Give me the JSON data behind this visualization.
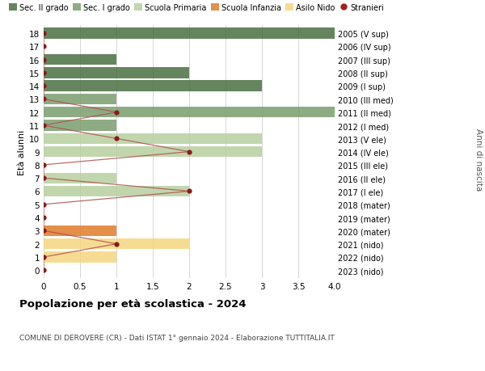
{
  "ages": [
    18,
    17,
    16,
    15,
    14,
    13,
    12,
    11,
    10,
    9,
    8,
    7,
    6,
    5,
    4,
    3,
    2,
    1,
    0
  ],
  "years_labels": [
    "2005 (V sup)",
    "2006 (IV sup)",
    "2007 (III sup)",
    "2008 (II sup)",
    "2009 (I sup)",
    "2010 (III med)",
    "2011 (II med)",
    "2012 (I med)",
    "2013 (V ele)",
    "2014 (IV ele)",
    "2015 (III ele)",
    "2016 (II ele)",
    "2017 (I ele)",
    "2018 (mater)",
    "2019 (mater)",
    "2020 (mater)",
    "2021 (nido)",
    "2022 (nido)",
    "2023 (nido)"
  ],
  "bar_values": [
    4.0,
    0,
    1.0,
    2.0,
    3.0,
    1.0,
    4.0,
    1.0,
    3.0,
    3.0,
    0,
    1.0,
    2.0,
    0,
    0,
    1.0,
    2.0,
    1.0,
    0
  ],
  "bar_colors": [
    "#4a7043",
    "#4a7043",
    "#4a7043",
    "#4a7043",
    "#4a7043",
    "#7a9e6e",
    "#7a9e6e",
    "#7a9e6e",
    "#b8cfa0",
    "#b8cfa0",
    "#b8cfa0",
    "#b8cfa0",
    "#b8cfa0",
    "#e07b2a",
    "#e07b2a",
    "#e07b2a",
    "#f5d680",
    "#f5d680",
    "#f5d680"
  ],
  "stranieri_x": [
    0,
    0,
    0,
    0,
    0,
    0,
    1.0,
    0,
    1.0,
    2.0,
    0,
    0,
    2.0,
    0,
    0,
    0,
    1.0,
    0,
    0
  ],
  "legend_labels": [
    "Sec. II grado",
    "Sec. I grado",
    "Scuola Primaria",
    "Scuola Infanzia",
    "Asilo Nido",
    "Stranieri"
  ],
  "legend_colors": [
    "#4a7043",
    "#7a9e6e",
    "#b8cfa0",
    "#e07b2a",
    "#f5d680",
    "#a02020"
  ],
  "title": "Popolazione per età scolastica - 2024",
  "subtitle": "COMUNE DI DEROVERE (CR) - Dati ISTAT 1° gennaio 2024 - Elaborazione TUTTITALIA.IT",
  "ylabel_left": "Età alunni",
  "ylabel_right": "Anni di nascita",
  "xlim": [
    0,
    4.0
  ],
  "xticks": [
    0,
    0.5,
    1.0,
    1.5,
    2.0,
    2.5,
    3.0,
    3.5,
    4.0
  ],
  "xtick_labels": [
    "0",
    "0.5",
    "1",
    "1.5",
    "2",
    "2.5",
    "3",
    "3.5",
    "4.0"
  ],
  "grid_color": "#d0d0d0",
  "bar_alpha": 0.85,
  "stranieri_color": "#8b1a1a",
  "stranieri_line_color": "#b05050",
  "background_color": "#ffffff"
}
